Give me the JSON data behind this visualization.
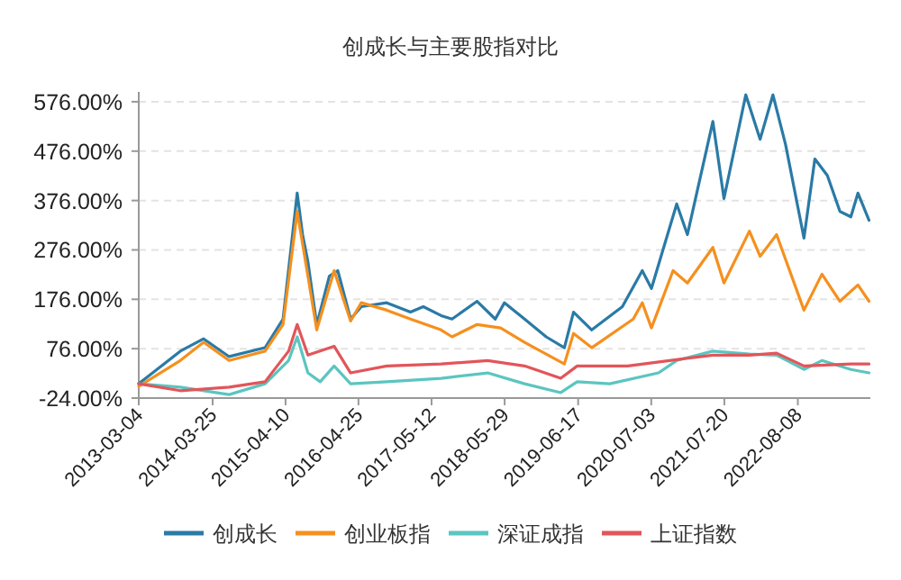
{
  "chart_data": {
    "type": "line",
    "title": "创成长与主要股指对比",
    "xlim": [
      "2013-03-04",
      "2023-08-22"
    ],
    "xticks": [
      "2013-03-04",
      "2014-03-25",
      "2015-04-10",
      "2016-04-25",
      "2017-05-12",
      "2018-05-29",
      "2019-06-17",
      "2020-07-03",
      "2021-07-20",
      "2022-08-08"
    ],
    "ylim": [
      -24,
      596
    ],
    "yticks": [
      {
        "value": -24,
        "label": "-24.00%"
      },
      {
        "value": 76,
        "label": "76.00%"
      },
      {
        "value": 176,
        "label": "176.00%"
      },
      {
        "value": 276,
        "label": "276.00%"
      },
      {
        "value": 376,
        "label": "376.00%"
      },
      {
        "value": 476,
        "label": "476.00%"
      },
      {
        "value": 576,
        "label": "576.00%"
      }
    ],
    "grid": "y",
    "legend": "bottom",
    "series": [
      {
        "name": "创成长",
        "color": "#2a7aa6",
        "x": [
          "2013-03-04",
          "2013-10-07",
          "2014-02-06",
          "2014-06-19",
          "2014-12-24",
          "2015-03-28",
          "2015-06-10",
          "2015-07-08",
          "2015-08-05",
          "2015-09-20",
          "2015-11-25",
          "2016-01-08",
          "2016-03-15",
          "2016-05-10",
          "2016-09-20",
          "2017-01-22",
          "2017-03-30",
          "2017-07-01",
          "2017-08-27",
          "2018-01-05",
          "2018-04-10",
          "2018-05-28",
          "2018-09-10",
          "2019-01-01",
          "2019-04-06",
          "2019-05-24",
          "2019-08-27",
          "2020-02-03",
          "2020-05-17",
          "2020-07-04",
          "2020-11-13",
          "2021-01-08",
          "2021-05-21",
          "2021-07-18",
          "2021-11-09",
          "2022-01-23",
          "2022-03-31",
          "2022-06-05",
          "2022-09-09",
          "2022-11-05",
          "2023-01-09",
          "2023-03-16",
          "2023-05-12",
          "2023-06-18",
          "2023-08-15"
        ],
        "values": [
          5,
          71,
          96,
          60,
          78,
          136,
          391,
          307,
          252,
          125,
          223,
          234,
          136,
          161,
          169,
          150,
          161,
          143,
          136,
          172,
          136,
          169,
          136,
          100,
          78,
          150,
          114,
          161,
          234,
          198,
          369,
          307,
          536,
          380,
          590,
          500,
          590,
          489,
          300,
          460,
          427,
          354,
          343,
          391,
          336
        ]
      },
      {
        "name": "创业板指",
        "color": "#f5901e",
        "x": [
          "2013-03-04",
          "2013-10-07",
          "2014-02-06",
          "2014-06-19",
          "2014-12-24",
          "2015-03-28",
          "2015-06-10",
          "2015-08-05",
          "2015-09-20",
          "2015-12-20",
          "2016-03-15",
          "2016-05-10",
          "2016-09-20",
          "2017-01-22",
          "2017-07-01",
          "2017-08-27",
          "2018-01-05",
          "2018-05-08",
          "2018-09-10",
          "2019-04-06",
          "2019-05-24",
          "2019-08-27",
          "2020-03-31",
          "2020-05-17",
          "2020-07-04",
          "2020-10-25",
          "2021-01-08",
          "2021-05-21",
          "2021-07-18",
          "2021-11-28",
          "2022-01-23",
          "2022-04-19",
          "2022-09-09",
          "2022-12-12",
          "2023-03-16",
          "2023-06-18",
          "2023-08-15"
        ],
        "values": [
          0,
          52,
          89,
          52,
          71,
          125,
          354,
          223,
          114,
          234,
          132,
          169,
          154,
          136,
          114,
          100,
          125,
          118,
          89,
          45,
          107,
          78,
          136,
          169,
          118,
          234,
          209,
          281,
          209,
          314,
          263,
          307,
          154,
          227,
          172,
          205,
          172
        ]
      },
      {
        "name": "深证成指",
        "color": "#5bc5c0",
        "x": [
          "2013-03-04",
          "2013-10-07",
          "2014-06-19",
          "2014-12-24",
          "2015-04-26",
          "2015-06-10",
          "2015-08-05",
          "2015-10-08",
          "2015-12-20",
          "2016-03-15",
          "2016-09-20",
          "2017-07-01",
          "2018-03-01",
          "2018-09-10",
          "2019-03-18",
          "2019-06-12",
          "2019-11-29",
          "2020-08-10",
          "2020-11-13",
          "2021-05-21",
          "2021-11-28",
          "2022-04-19",
          "2022-09-09",
          "2022-12-12",
          "2023-05-12",
          "2023-08-15"
        ],
        "values": [
          5,
          -2,
          -17,
          5,
          52,
          100,
          27,
          9,
          41,
          5,
          9,
          16,
          27,
          5,
          -13,
          9,
          5,
          27,
          52,
          71,
          65,
          63,
          34,
          52,
          34,
          27
        ]
      },
      {
        "name": "上证指数",
        "color": "#e2555a",
        "x": [
          "2013-03-04",
          "2013-10-07",
          "2014-06-19",
          "2014-12-24",
          "2015-04-26",
          "2015-06-10",
          "2015-08-05",
          "2015-12-20",
          "2016-03-15",
          "2016-09-20",
          "2017-07-01",
          "2018-03-01",
          "2018-09-10",
          "2019-03-18",
          "2019-06-12",
          "2020-03-02",
          "2020-10-06",
          "2021-05-21",
          "2021-11-28",
          "2022-04-19",
          "2022-09-09",
          "2023-05-12",
          "2023-08-15"
        ],
        "values": [
          5,
          -9,
          -2,
          9,
          71,
          125,
          63,
          81,
          27,
          41,
          45,
          52,
          41,
          16,
          41,
          41,
          52,
          63,
          63,
          67,
          41,
          45,
          45
        ]
      }
    ]
  }
}
